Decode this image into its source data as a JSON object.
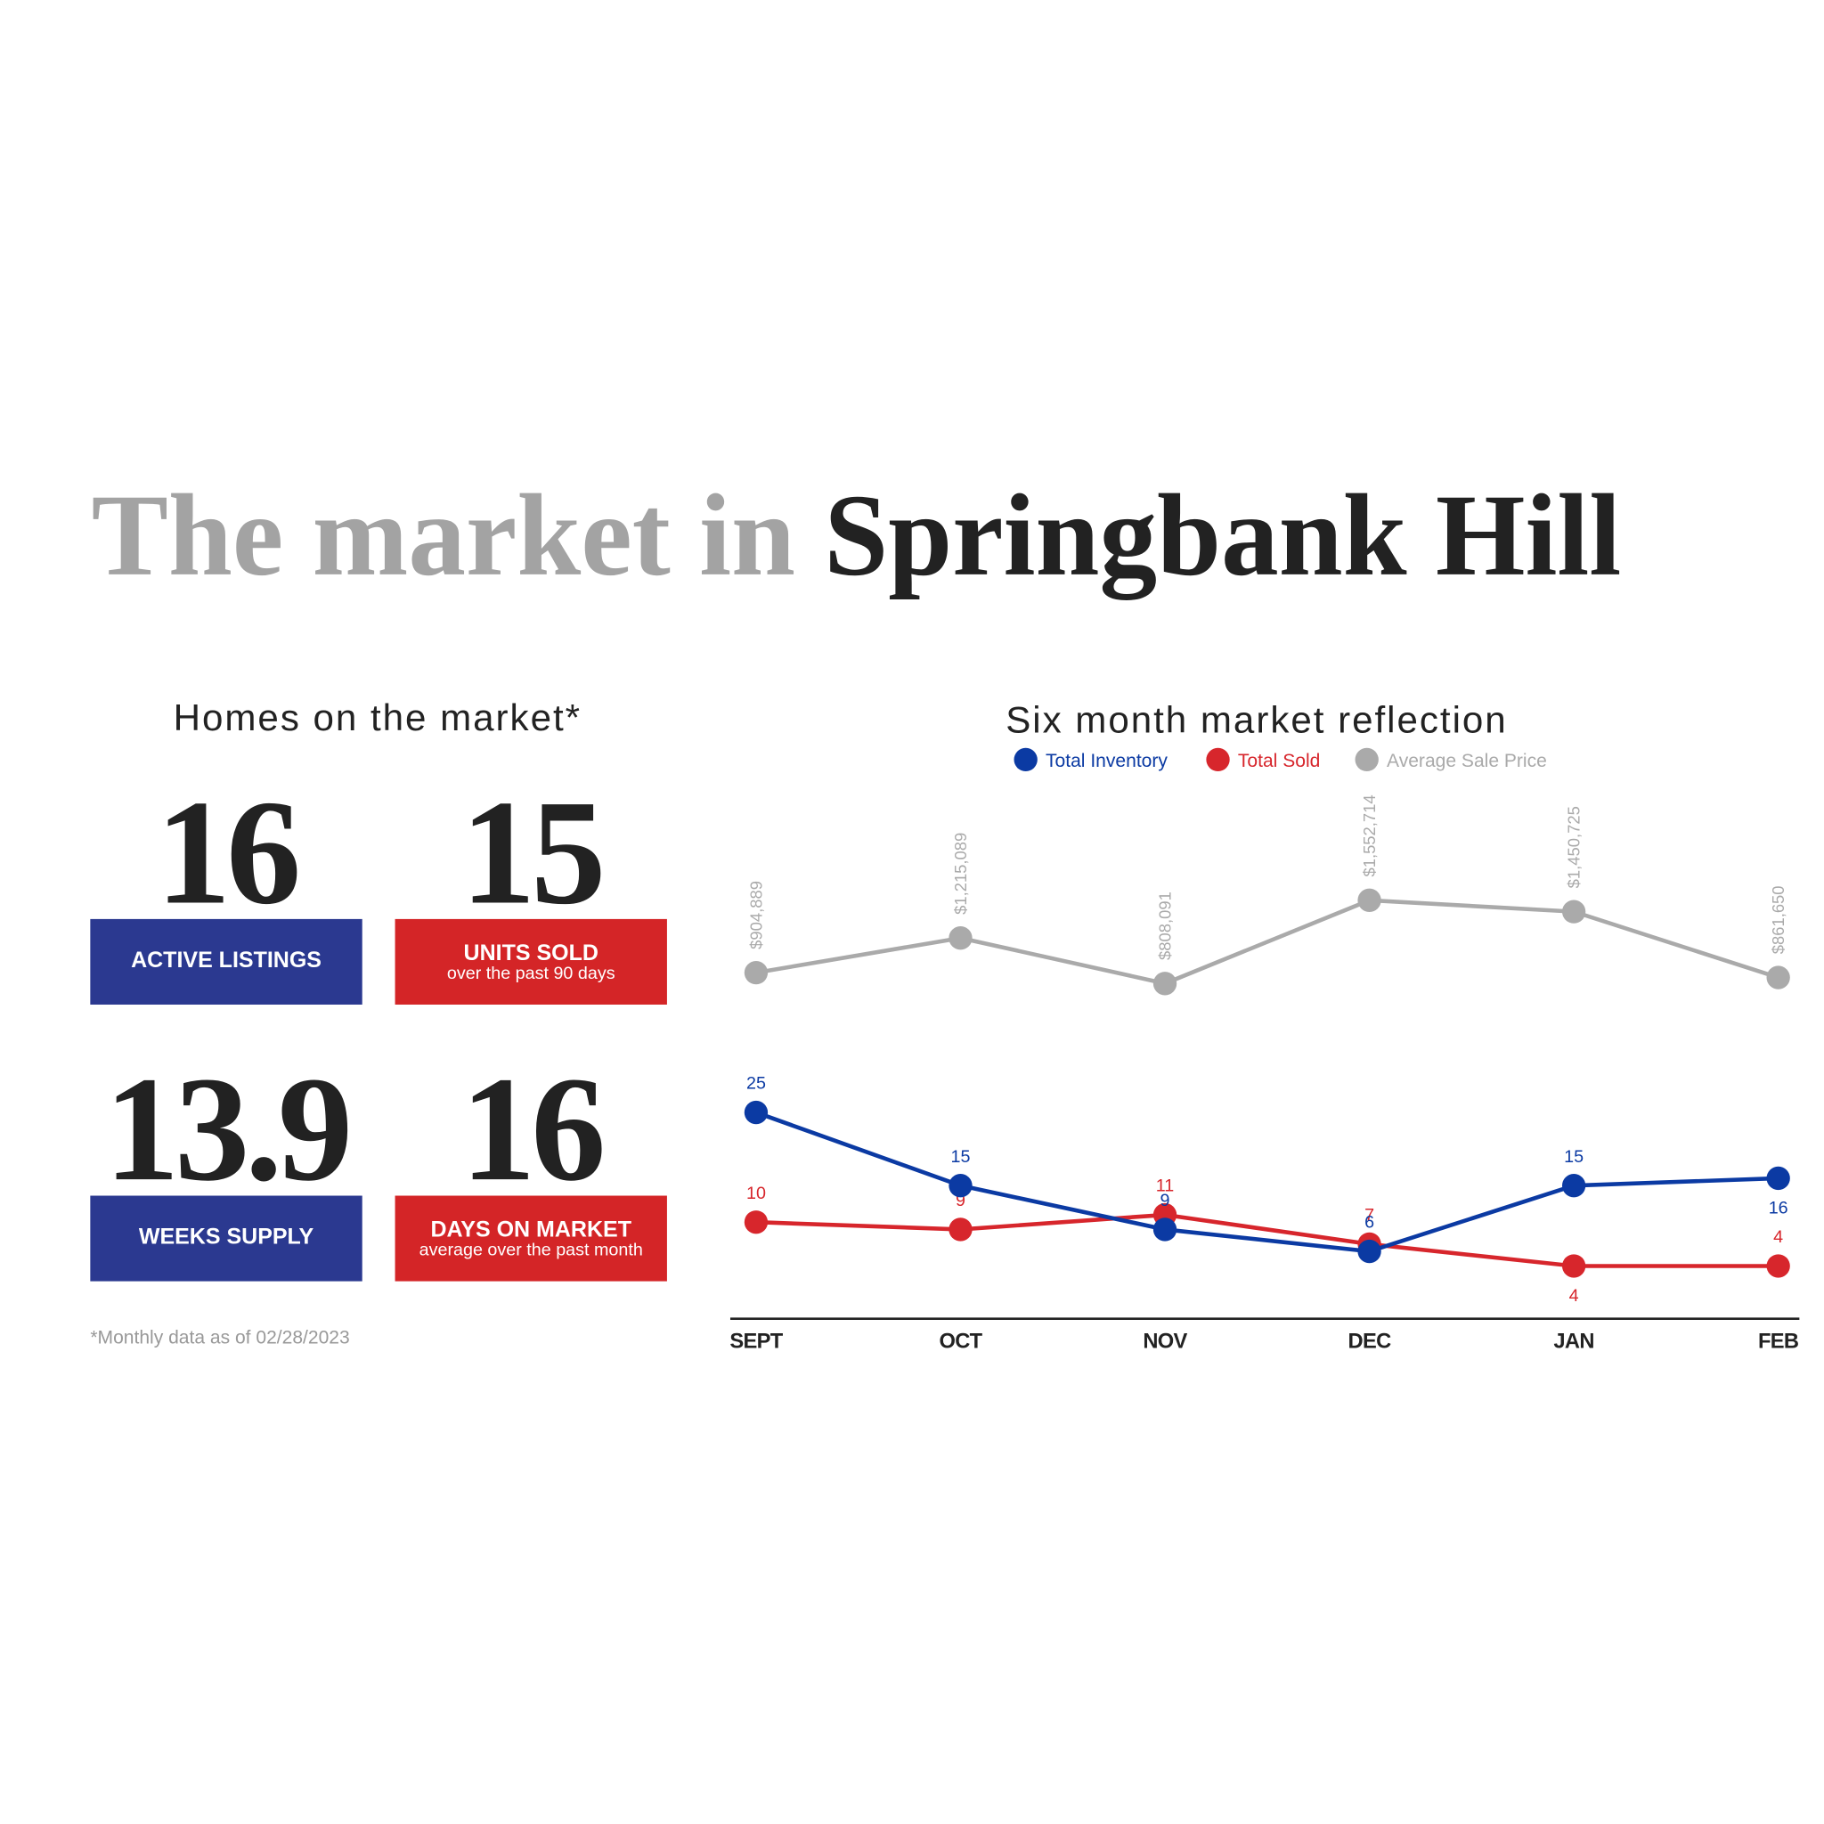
{
  "header": {
    "title_lead": "The market in",
    "title_place": "Springbank Hill"
  },
  "stats": {
    "heading": "Homes on the market*",
    "cards": [
      {
        "value": 16,
        "label": "ACTIVE LISTINGS",
        "color": "#2b3990"
      },
      {
        "value": 15,
        "label": "UNITS SOLD",
        "sublabel": "over the past 90 days",
        "color": "#d42527"
      },
      {
        "value": 13.9,
        "label": "WEEKS SUPPLY",
        "color": "#2b3990"
      },
      {
        "value": 16,
        "label": "DAYS ON MARKET",
        "sublabel": "average over the past month",
        "color": "#d42527"
      }
    ],
    "footnote": "*Monthly data as of 02/28/2023"
  },
  "chart_data": {
    "type": "line",
    "title": "Six month market reflection",
    "categories": [
      "SEPT",
      "OCT",
      "NOV",
      "DEC",
      "JAN",
      "FEB"
    ],
    "series": [
      {
        "name": "Total Inventory",
        "color": "#0b3aa3",
        "values": [
          25,
          15,
          9,
          6,
          15,
          16
        ]
      },
      {
        "name": "Total Sold",
        "color": "#d7262c",
        "values": [
          10,
          9,
          11,
          7,
          4,
          4
        ]
      },
      {
        "name": "Average Sale Price",
        "color": "#aaaaaa",
        "axis": "y2",
        "values": [
          904889,
          1215089,
          808091,
          1552714,
          1450725,
          861650
        ],
        "value_labels": [
          "$904,889",
          "$1,215,089",
          "$808,091",
          "$1,552,714",
          "$1,450,725",
          "$861,650"
        ]
      }
    ]
  }
}
